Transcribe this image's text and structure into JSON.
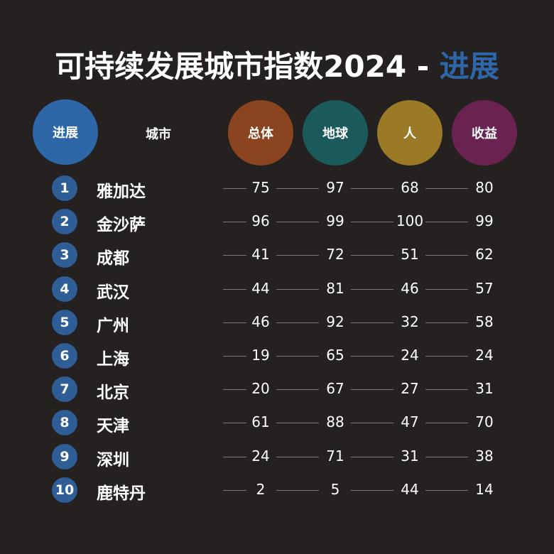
{
  "title": {
    "main": "可持续发展城市指数2024 - ",
    "accent": "进展"
  },
  "colors": {
    "background": "#252121",
    "progress": "#2e67a8",
    "overall": "#8a4420",
    "planet": "#1b5a5a",
    "people": "#9a7a26",
    "profit": "#6a2350"
  },
  "chart_data": {
    "type": "table",
    "columns": {
      "rank": "进展",
      "city": "城市",
      "overall": "总体",
      "planet": "地球",
      "people": "人",
      "profit": "收益"
    },
    "rows": [
      {
        "rank": "1",
        "city": "雅加达",
        "overall": "75",
        "planet": "97",
        "people": "68",
        "profit": "80"
      },
      {
        "rank": "2",
        "city": "金沙萨",
        "overall": "96",
        "planet": "99",
        "people": "100",
        "profit": "99"
      },
      {
        "rank": "3",
        "city": "成都",
        "overall": "41",
        "planet": "72",
        "people": "51",
        "profit": "62"
      },
      {
        "rank": "4",
        "city": "武汉",
        "overall": "44",
        "planet": "81",
        "people": "46",
        "profit": "57"
      },
      {
        "rank": "5",
        "city": "广州",
        "overall": "46",
        "planet": "92",
        "people": "32",
        "profit": "58"
      },
      {
        "rank": "6",
        "city": "上海",
        "overall": "19",
        "planet": "65",
        "people": "24",
        "profit": "24"
      },
      {
        "rank": "7",
        "city": "北京",
        "overall": "20",
        "planet": "67",
        "people": "27",
        "profit": "31"
      },
      {
        "rank": "8",
        "city": "天津",
        "overall": "61",
        "planet": "88",
        "people": "47",
        "profit": "70"
      },
      {
        "rank": "9",
        "city": "深圳",
        "overall": "24",
        "planet": "71",
        "people": "31",
        "profit": "38"
      },
      {
        "rank": "10",
        "city": "鹿特丹",
        "overall": "2",
        "planet": "5",
        "people": "44",
        "profit": "14"
      }
    ]
  }
}
